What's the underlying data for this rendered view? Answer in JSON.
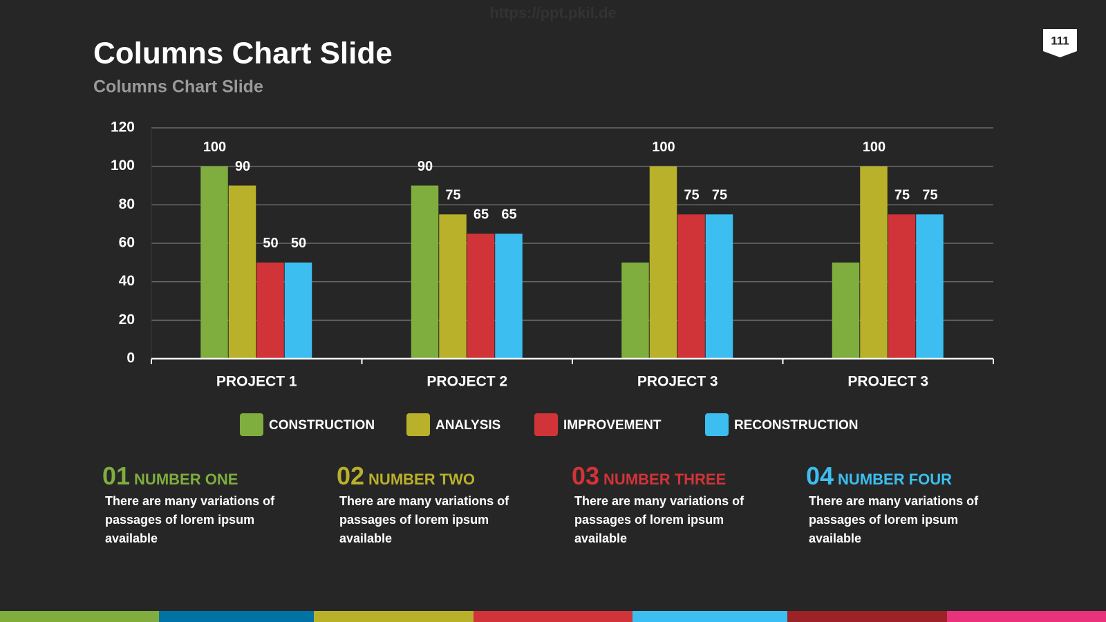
{
  "header": {
    "watermark": "https://ppt.pkil.de",
    "title": "Columns Chart Slide",
    "subtitle": "Columns Chart Slide",
    "page_number": "111"
  },
  "chart_data": {
    "type": "bar",
    "categories": [
      "PROJECT 1",
      "PROJECT 2",
      "PROJECT 3",
      "PROJECT 3"
    ],
    "series": [
      {
        "name": "CONSTRUCTION",
        "color": "#7fad3e",
        "values": [
          100,
          90,
          50,
          50
        ],
        "value_labels": [
          "100",
          "90",
          null,
          null
        ]
      },
      {
        "name": "ANALYSIS",
        "color": "#b9b12a",
        "values": [
          90,
          75,
          100,
          100
        ]
      },
      {
        "name": "IMPROVEMENT",
        "color": "#d13438",
        "values": [
          50,
          65,
          75,
          75
        ]
      },
      {
        "name": "RECONSTRUCTION",
        "color": "#3cbff0",
        "values": [
          50,
          65,
          75,
          75
        ]
      }
    ],
    "ylim": [
      0,
      120
    ],
    "yticks": [
      0,
      20,
      40,
      60,
      80,
      100,
      120
    ],
    "grid": true,
    "legend": "bottom"
  },
  "items": [
    {
      "number": "01",
      "heading": "NUMBER ONE",
      "text": "There are many variations of passages of lorem ipsum available",
      "color": "#7fad3e"
    },
    {
      "number": "02",
      "heading": "NUMBER TWO",
      "text": "There are many variations of passages of lorem ipsum available",
      "color": "#b9b12a"
    },
    {
      "number": "03",
      "heading": "NUMBER THREE",
      "text": "There are many variations of passages of lorem ipsum available",
      "color": "#d13438"
    },
    {
      "number": "04",
      "heading": "NUMBER FOUR",
      "text": "There are many variations of passages of lorem ipsum available",
      "color": "#3cbff0"
    }
  ]
}
